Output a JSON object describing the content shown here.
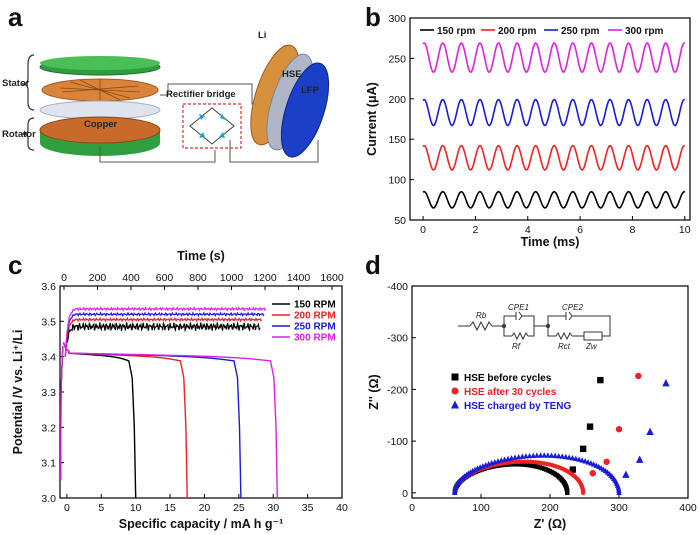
{
  "panels": {
    "a": "a",
    "b": "b",
    "c": "c",
    "d": "d"
  },
  "schematic": {
    "stator": "Stator",
    "rotator": "Rotator",
    "copper": "Copper",
    "rectifier": "Rectifier bridge",
    "li": "Li",
    "hse": "HSE",
    "lfp": "LFP"
  },
  "chart_data": [
    {
      "panel": "b",
      "type": "line",
      "xlabel": "Time (ms)",
      "ylabel": "Current (μA)",
      "xlim": [
        -0.5,
        10.2
      ],
      "ylim": [
        50,
        300
      ],
      "xticks": [
        0,
        2,
        4,
        6,
        8,
        10
      ],
      "yticks": [
        50,
        100,
        150,
        200,
        250,
        300
      ],
      "legend_position": "top",
      "series": [
        {
          "name": "150 rpm",
          "color": "#000000",
          "x_start": 0,
          "x_end": 10,
          "mean": 75,
          "amplitude": 10,
          "period_ms": 0.71
        },
        {
          "name": "200 rpm",
          "color": "#ee2222",
          "x_start": 0,
          "x_end": 10,
          "mean": 127,
          "amplitude": 15,
          "period_ms": 0.71
        },
        {
          "name": "250 rpm",
          "color": "#1a1adc",
          "x_start": 0,
          "x_end": 10,
          "mean": 183,
          "amplitude": 16,
          "period_ms": 0.71
        },
        {
          "name": "300 rpm",
          "color": "#e020e0",
          "x_start": 0,
          "x_end": 10,
          "mean": 251,
          "amplitude": 18,
          "period_ms": 0.71
        }
      ]
    },
    {
      "panel": "c",
      "type": "line",
      "xlabel": "Specific capacity / mA h g⁻¹",
      "ylabel": "Potential /V vs. Li⁺/Li",
      "top_xlabel": "Time (s)",
      "xlim": [
        -1,
        40
      ],
      "ylim": [
        3.0,
        3.6
      ],
      "top_xlim": [
        0,
        1600
      ],
      "xticks": [
        0,
        5,
        10,
        15,
        20,
        25,
        30,
        35,
        40
      ],
      "yticks": [
        3.0,
        3.1,
        3.2,
        3.3,
        3.4,
        3.5,
        3.6
      ],
      "top_xticks": [
        0,
        200,
        400,
        600,
        800,
        1000,
        1200,
        1400,
        1600
      ],
      "legend_position": "right",
      "series": [
        {
          "name": "150 RPM",
          "color": "#000000",
          "charge_plateau": 3.485,
          "discharge_plateau": 3.41,
          "capacity": 10
        },
        {
          "name": "200 RPM",
          "color": "#ee2222",
          "charge_plateau": 3.505,
          "discharge_plateau": 3.41,
          "capacity": 17.5
        },
        {
          "name": "250 RPM",
          "color": "#1a1adc",
          "charge_plateau": 3.52,
          "discharge_plateau": 3.41,
          "capacity": 25.3
        },
        {
          "name": "300 RPM",
          "color": "#e020e0",
          "charge_plateau": 3.535,
          "discharge_plateau": 3.41,
          "capacity": 30.6
        }
      ]
    },
    {
      "panel": "d",
      "type": "scatter",
      "xlabel": "Z' (Ω)",
      "ylabel": "Z'' (Ω)",
      "xlim": [
        0,
        400
      ],
      "ylim": [
        10,
        -400
      ],
      "xticks": [
        0,
        100,
        200,
        300,
        400
      ],
      "yticks": [
        0,
        -100,
        -200,
        -300,
        -400
      ],
      "legend_position": "center-left",
      "circuit_labels": [
        "Rb",
        "CPE1",
        "Rf",
        "CPE2",
        "Rct",
        "Zw"
      ],
      "series": [
        {
          "name": "HSE before cycles",
          "color": "#000000",
          "marker": "square",
          "semicircle": {
            "x0": 62,
            "x1": 225,
            "height": 55
          },
          "tail": [
            [
              233,
              -45
            ],
            [
              248,
              -85
            ],
            [
              258,
              -128
            ],
            [
              273,
              -218
            ]
          ]
        },
        {
          "name": "HSE after 30 cycles",
          "color": "#ee2222",
          "marker": "circle",
          "semicircle": {
            "x0": 62,
            "x1": 248,
            "height": 60
          },
          "tail": [
            [
              262,
              -38
            ],
            [
              282,
              -60
            ],
            [
              300,
              -123
            ],
            [
              328,
              -226
            ]
          ]
        },
        {
          "name": "HSE charged by TENG",
          "color": "#1a1adc",
          "marker": "triangle",
          "semicircle": {
            "x0": 62,
            "x1": 300,
            "height": 72
          },
          "tail": [
            [
              310,
              -35
            ],
            [
              330,
              -64
            ],
            [
              345,
              -118
            ],
            [
              368,
              -212
            ]
          ]
        }
      ]
    }
  ]
}
